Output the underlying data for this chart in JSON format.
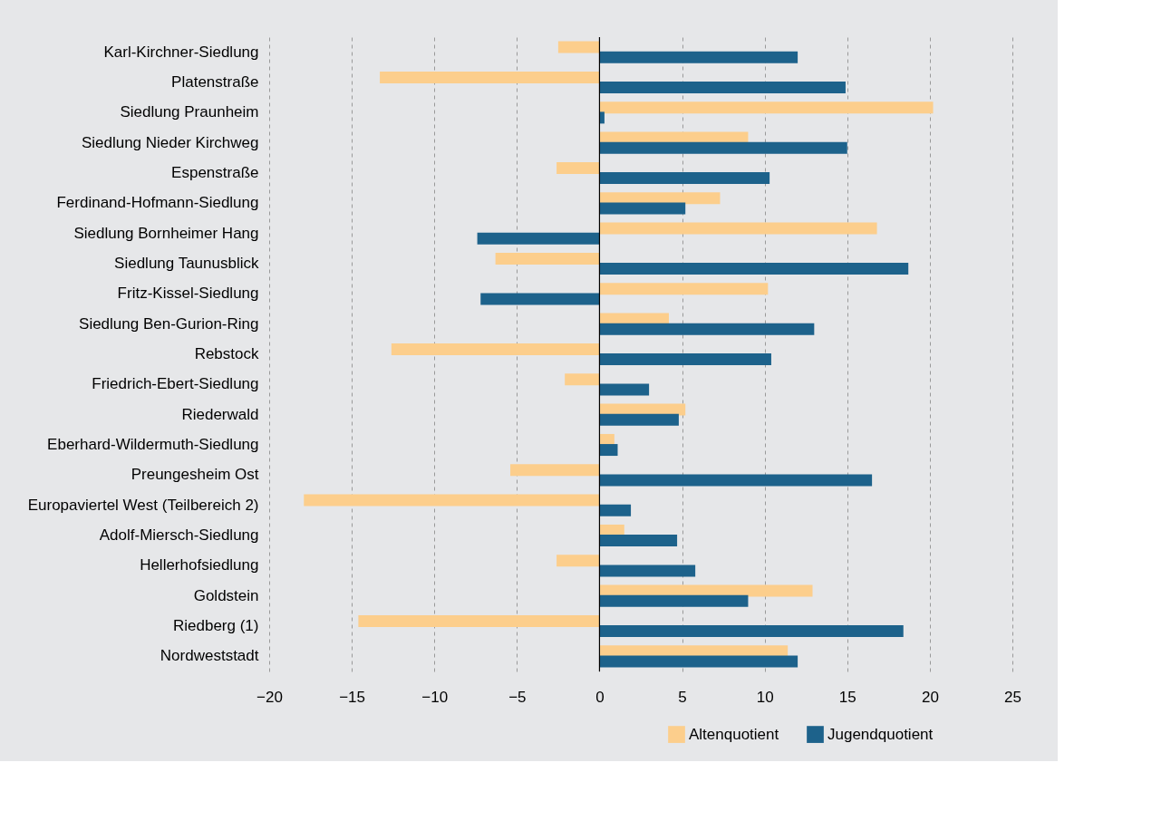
{
  "chart_data": {
    "type": "bar",
    "orientation": "horizontal",
    "categories": [
      "Karl-Kirchner-Siedlung",
      "Platenstraße",
      "Siedlung Praunheim",
      "Siedlung Nieder Kirchweg",
      "Espenstraße",
      "Ferdinand-Hofmann-Siedlung",
      "Siedlung Bornheimer Hang",
      "Siedlung Taunusblick",
      "Fritz-Kissel-Siedlung",
      "Siedlung Ben-Gurion-Ring",
      "Rebstock",
      "Friedrich-Ebert-Siedlung",
      "Riederwald",
      "Eberhard-Wildermuth-Siedlung",
      "Preungesheim Ost",
      "Europaviertel West (Teilbereich 2)",
      "Adolf-Miersch-Siedlung",
      "Hellerhofsiedlung",
      "Goldstein",
      "Riedberg (1)",
      "Nordweststadt"
    ],
    "series": [
      {
        "name": "Altenquotient",
        "color": "#fcce8c",
        "values": [
          -2.5,
          -13.3,
          20.2,
          9.0,
          -2.6,
          7.3,
          16.8,
          -6.3,
          10.2,
          4.2,
          -12.6,
          -2.1,
          5.2,
          0.9,
          -5.4,
          -17.9,
          1.5,
          -2.6,
          12.9,
          -14.6,
          11.4
        ]
      },
      {
        "name": "Jugendquotient",
        "color": "#1d628b",
        "values": [
          12.0,
          14.9,
          0.3,
          15.0,
          10.3,
          5.2,
          -7.4,
          18.7,
          -7.2,
          13.0,
          10.4,
          3.0,
          4.8,
          1.1,
          16.5,
          1.9,
          4.7,
          5.8,
          9.0,
          18.4,
          12.0
        ]
      }
    ],
    "xlim": [
      -20,
      25
    ],
    "xticks": [
      -20,
      -15,
      -10,
      -5,
      0,
      5,
      10,
      15,
      20,
      25
    ],
    "ref_lines": [
      {
        "axis": "x",
        "value": 0,
        "color": "#000000"
      }
    ],
    "grid": "x",
    "legend": "bottom right"
  }
}
